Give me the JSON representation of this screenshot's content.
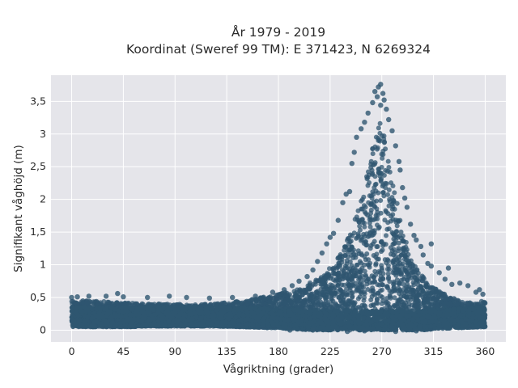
{
  "chart_data": {
    "type": "scatter",
    "title": "År 1979 - 2019",
    "subtitle": "Koordinat (Sweref 99 TM): E 371423, N 6269324",
    "xlabel": "Vågriktning (grader)",
    "ylabel": "Signifikant våghöjd (m)",
    "xlim": [
      -18,
      378
    ],
    "ylim": [
      -0.18,
      3.9
    ],
    "x_ticks": [
      0,
      45,
      90,
      135,
      180,
      225,
      270,
      315,
      360
    ],
    "x_tick_labels": [
      "0",
      "45",
      "90",
      "135",
      "180",
      "225",
      "270",
      "315",
      "360"
    ],
    "y_ticks": [
      0,
      0.5,
      1,
      1.5,
      2,
      2.5,
      3,
      3.5
    ],
    "y_tick_labels": [
      "0",
      "0,5",
      "1",
      "1,5",
      "2",
      "2,5",
      "3",
      "3,5"
    ],
    "grid": true,
    "marker_color": "#2f5670",
    "plot_background": "#e5e5ea",
    "series": [
      {
        "density_profile": {
          "direction": [
            0,
            20,
            45,
            70,
            90,
            120,
            150,
            180,
            200,
            220,
            235,
            245,
            255,
            262,
            268,
            272,
            278,
            285,
            295,
            305,
            315,
            330,
            345,
            360
          ],
          "lower_bound_m": [
            0.05,
            0.05,
            0.05,
            0.06,
            0.06,
            0.06,
            0.05,
            0.03,
            0.01,
            0.0,
            0.0,
            0.0,
            0.0,
            0.0,
            0.0,
            0.0,
            0.0,
            0.0,
            0.0,
            0.0,
            0.02,
            0.03,
            0.04,
            0.05
          ],
          "upper_bound_m": [
            0.45,
            0.45,
            0.42,
            0.4,
            0.4,
            0.4,
            0.45,
            0.55,
            0.65,
            0.85,
            1.2,
            1.6,
            2.2,
            2.8,
            3.2,
            3.0,
            2.4,
            1.8,
            1.2,
            0.85,
            0.65,
            0.5,
            0.42,
            0.45
          ]
        },
        "points": [
          [
            269,
            3.76
          ],
          [
            267,
            3.72
          ],
          [
            264,
            3.65
          ],
          [
            271,
            3.62
          ],
          [
            266,
            3.57
          ],
          [
            272,
            3.52
          ],
          [
            262,
            3.48
          ],
          [
            269,
            3.44
          ],
          [
            258,
            3.32
          ],
          [
            274,
            3.38
          ],
          [
            255,
            3.18
          ],
          [
            276,
            3.22
          ],
          [
            252,
            3.08
          ],
          [
            279,
            3.05
          ],
          [
            248,
            2.95
          ],
          [
            282,
            2.82
          ],
          [
            246,
            2.72
          ],
          [
            285,
            2.58
          ],
          [
            244,
            2.55
          ],
          [
            286,
            2.45
          ],
          [
            242,
            2.12
          ],
          [
            288,
            2.18
          ],
          [
            239,
            2.08
          ],
          [
            290,
            2.02
          ],
          [
            236,
            1.95
          ],
          [
            292,
            1.88
          ],
          [
            232,
            1.68
          ],
          [
            295,
            1.62
          ],
          [
            228,
            1.48
          ],
          [
            298,
            1.45
          ],
          [
            225,
            1.42
          ],
          [
            300,
            1.38
          ],
          [
            222,
            1.32
          ],
          [
            304,
            1.28
          ],
          [
            218,
            1.18
          ],
          [
            306,
            1.15
          ],
          [
            214,
            1.05
          ],
          [
            310,
            1.02
          ],
          [
            210,
            0.92
          ],
          [
            313,
            0.98
          ],
          [
            313,
            1.32
          ],
          [
            328,
            0.95
          ],
          [
            320,
            0.88
          ],
          [
            205,
            0.82
          ],
          [
            198,
            0.75
          ],
          [
            325,
            0.78
          ],
          [
            338,
            0.72
          ],
          [
            345,
            0.68
          ],
          [
            331,
            0.7
          ],
          [
            192,
            0.68
          ],
          [
            185,
            0.62
          ],
          [
            355,
            0.62
          ],
          [
            352,
            0.58
          ],
          [
            358,
            0.55
          ],
          [
            175,
            0.58
          ],
          [
            160,
            0.52
          ],
          [
            140,
            0.5
          ],
          [
            120,
            0.49
          ],
          [
            100,
            0.5
          ],
          [
            85,
            0.52
          ],
          [
            66,
            0.5
          ],
          [
            45,
            0.51
          ],
          [
            40,
            0.56
          ],
          [
            30,
            0.52
          ],
          [
            15,
            0.52
          ],
          [
            5,
            0.51
          ],
          [
            0,
            0.5
          ],
          [
            240,
            -0.02
          ],
          [
            255,
            -0.01
          ],
          [
            282,
            -0.02
          ],
          [
            300,
            -0.01
          ],
          [
            210,
            0.0
          ],
          [
            190,
            0.0
          ]
        ]
      }
    ]
  }
}
